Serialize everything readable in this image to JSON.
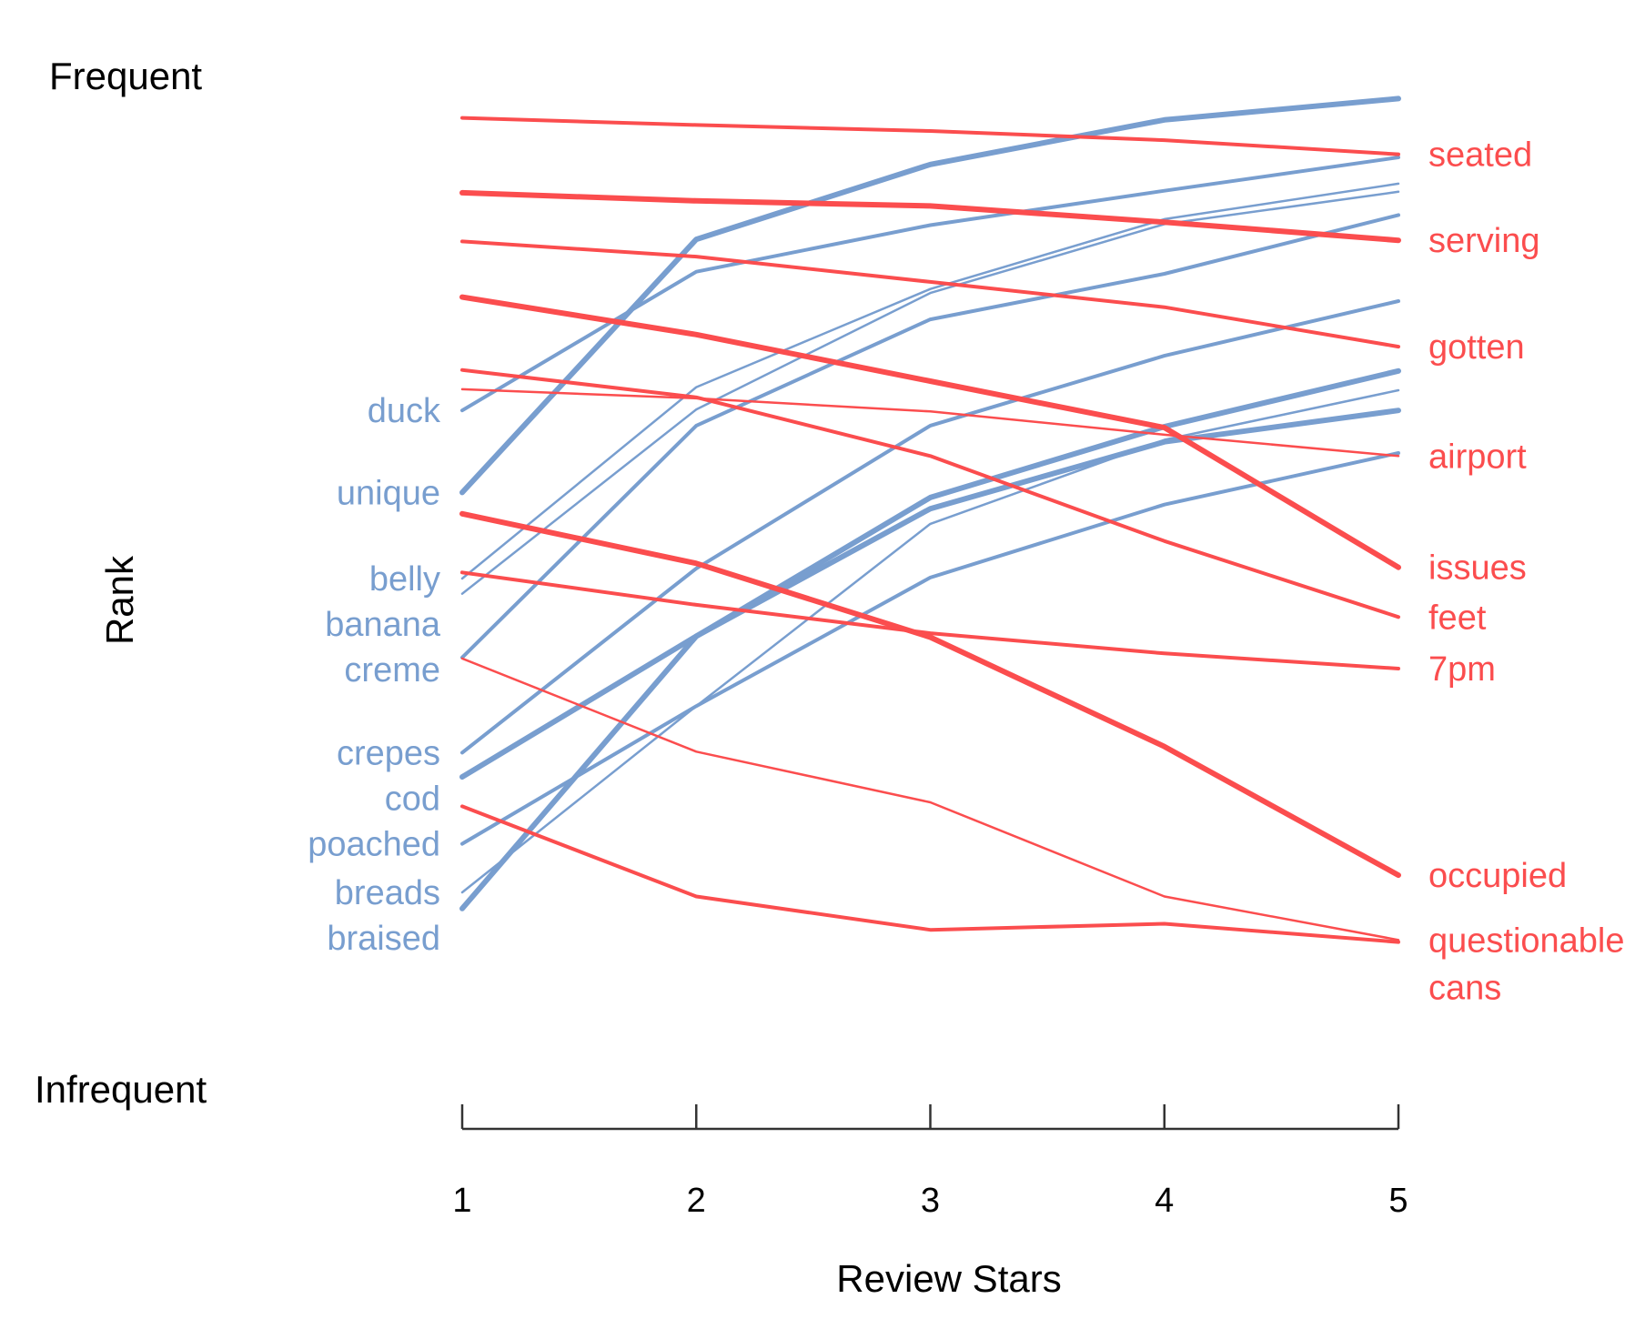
{
  "colors": {
    "decreasing": "#fb4d4e",
    "increasing": "#789ecf",
    "axis": "#333333",
    "text": "#000000"
  },
  "chart_data": {
    "type": "line",
    "title": "",
    "xlabel": "Review Stars",
    "ylabel": "Rank",
    "y_top_label": "Frequent",
    "y_bottom_label": "Infrequent",
    "x": [
      1,
      2,
      3,
      4,
      5
    ],
    "xlim": [
      1,
      5
    ],
    "ylim": [
      0,
      100
    ],
    "y_direction": "0 = most frequent (top), 100 = least frequent (bottom)",
    "grid": false,
    "legend": "none",
    "series": [
      {
        "name": "duck",
        "group": "increasing",
        "weight": "medium",
        "values": [
          35.6,
          21.9,
          17.3,
          13.9,
          10.6
        ]
      },
      {
        "name": "unique",
        "group": "increasing",
        "weight": "heavy",
        "values": [
          43.7,
          18.7,
          11.3,
          6.9,
          4.8
        ]
      },
      {
        "name": "belly",
        "group": "increasing",
        "weight": "light",
        "values": [
          52.2,
          33.3,
          23.6,
          16.7,
          13.2
        ]
      },
      {
        "name": "banana",
        "group": "increasing",
        "weight": "light",
        "values": [
          53.7,
          35.5,
          24.0,
          17.2,
          14.0
        ]
      },
      {
        "name": "creme",
        "group": "increasing",
        "weight": "medium",
        "values": [
          60.0,
          37.1,
          26.6,
          22.1,
          16.3
        ]
      },
      {
        "name": "crepes",
        "group": "increasing",
        "weight": "medium",
        "values": [
          69.4,
          51.2,
          37.1,
          30.2,
          24.8
        ]
      },
      {
        "name": "cod",
        "group": "increasing",
        "weight": "heavy",
        "values": [
          71.8,
          57.9,
          44.2,
          37.2,
          31.7
        ]
      },
      {
        "name": "poached",
        "group": "increasing",
        "weight": "medium",
        "values": [
          78.4,
          64.8,
          52.1,
          44.9,
          39.8
        ]
      },
      {
        "name": "breads",
        "group": "increasing",
        "weight": "light",
        "values": [
          83.2,
          64.8,
          46.8,
          38.5,
          33.6
        ]
      },
      {
        "name": "braised",
        "group": "increasing",
        "weight": "heavy",
        "values": [
          84.8,
          57.9,
          45.3,
          38.7,
          35.6
        ]
      },
      {
        "name": "seated",
        "group": "decreasing",
        "weight": "medium",
        "values": [
          6.7,
          7.4,
          8.0,
          8.9,
          10.3
        ]
      },
      {
        "name": "serving",
        "group": "decreasing",
        "weight": "heavy",
        "values": [
          14.1,
          14.9,
          15.4,
          17.0,
          18.8
        ]
      },
      {
        "name": "gotten",
        "group": "decreasing",
        "weight": "medium",
        "values": [
          18.9,
          20.4,
          22.9,
          25.4,
          29.3
        ]
      },
      {
        "name": "airport",
        "group": "decreasing",
        "weight": "light",
        "values": [
          33.5,
          34.4,
          35.7,
          38.0,
          40.1
        ]
      },
      {
        "name": "issues",
        "group": "decreasing",
        "weight": "heavy",
        "values": [
          24.4,
          28.1,
          32.7,
          37.3,
          51.1
        ]
      },
      {
        "name": "feet",
        "group": "decreasing",
        "weight": "medium",
        "values": [
          31.6,
          34.3,
          40.1,
          48.5,
          56.0
        ]
      },
      {
        "name": "7pm",
        "group": "decreasing",
        "weight": "medium",
        "values": [
          51.6,
          54.8,
          57.6,
          59.6,
          61.1
        ]
      },
      {
        "name": "occupied",
        "group": "decreasing",
        "weight": "heavy",
        "values": [
          45.8,
          50.7,
          58.0,
          68.8,
          81.5
        ]
      },
      {
        "name": "questionable",
        "group": "decreasing",
        "weight": "light",
        "values": [
          60.1,
          69.3,
          74.3,
          83.6,
          87.9
        ]
      },
      {
        "name": "cans",
        "group": "decreasing",
        "weight": "medium",
        "values": [
          74.7,
          83.6,
          86.9,
          86.3,
          88.1
        ]
      }
    ]
  }
}
